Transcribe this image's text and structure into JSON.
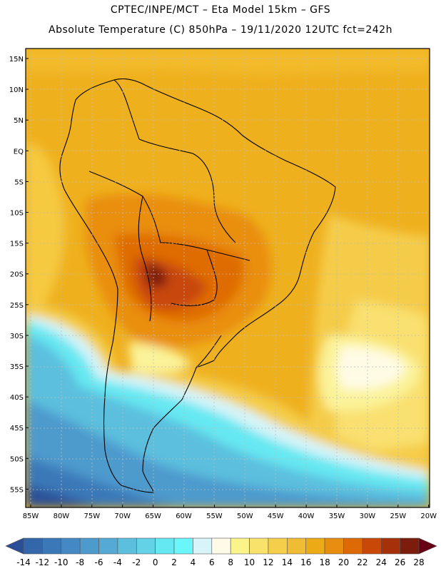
{
  "header": {
    "line1": "CPTEC/INPE/MCT –  Eta Model 15km – GFS",
    "line2": "Absolute Temperature (C) 850hPa – 19/11/2020 12UTC fct=242h"
  },
  "map": {
    "lat_ticks": [
      "15N",
      "10N",
      "5N",
      "EQ",
      "5S",
      "10S",
      "15S",
      "20S",
      "25S",
      "30S",
      "35S",
      "40S",
      "45S",
      "50S",
      "55S"
    ],
    "lon_ticks": [
      "85W",
      "80W",
      "75W",
      "70W",
      "65W",
      "60W",
      "55W",
      "50W",
      "45W",
      "40W",
      "35W",
      "30W",
      "25W",
      "20W"
    ]
  },
  "colorbar": {
    "units": "C",
    "labels": [
      "-14",
      "-12",
      "-10",
      "-8",
      "-6",
      "-4",
      "-2",
      "0",
      "2",
      "4",
      "6",
      "8",
      "10",
      "12",
      "14",
      "16",
      "18",
      "20",
      "22",
      "24",
      "26",
      "28"
    ],
    "colors": [
      "#2a4f96",
      "#3467aa",
      "#3b78b8",
      "#4489c4",
      "#4d9acd",
      "#55aad5",
      "#5cbfde",
      "#63d1e6",
      "#66e8f2",
      "#6af6fb",
      "#d6f4f9",
      "#fffbe8",
      "#fbf48a",
      "#f9e26c",
      "#f5cf4c",
      "#f0bc33",
      "#ecaa16",
      "#e88d0f",
      "#de6a05",
      "#c94807",
      "#a6300a",
      "#7c1c0c",
      "#650015"
    ]
  }
}
